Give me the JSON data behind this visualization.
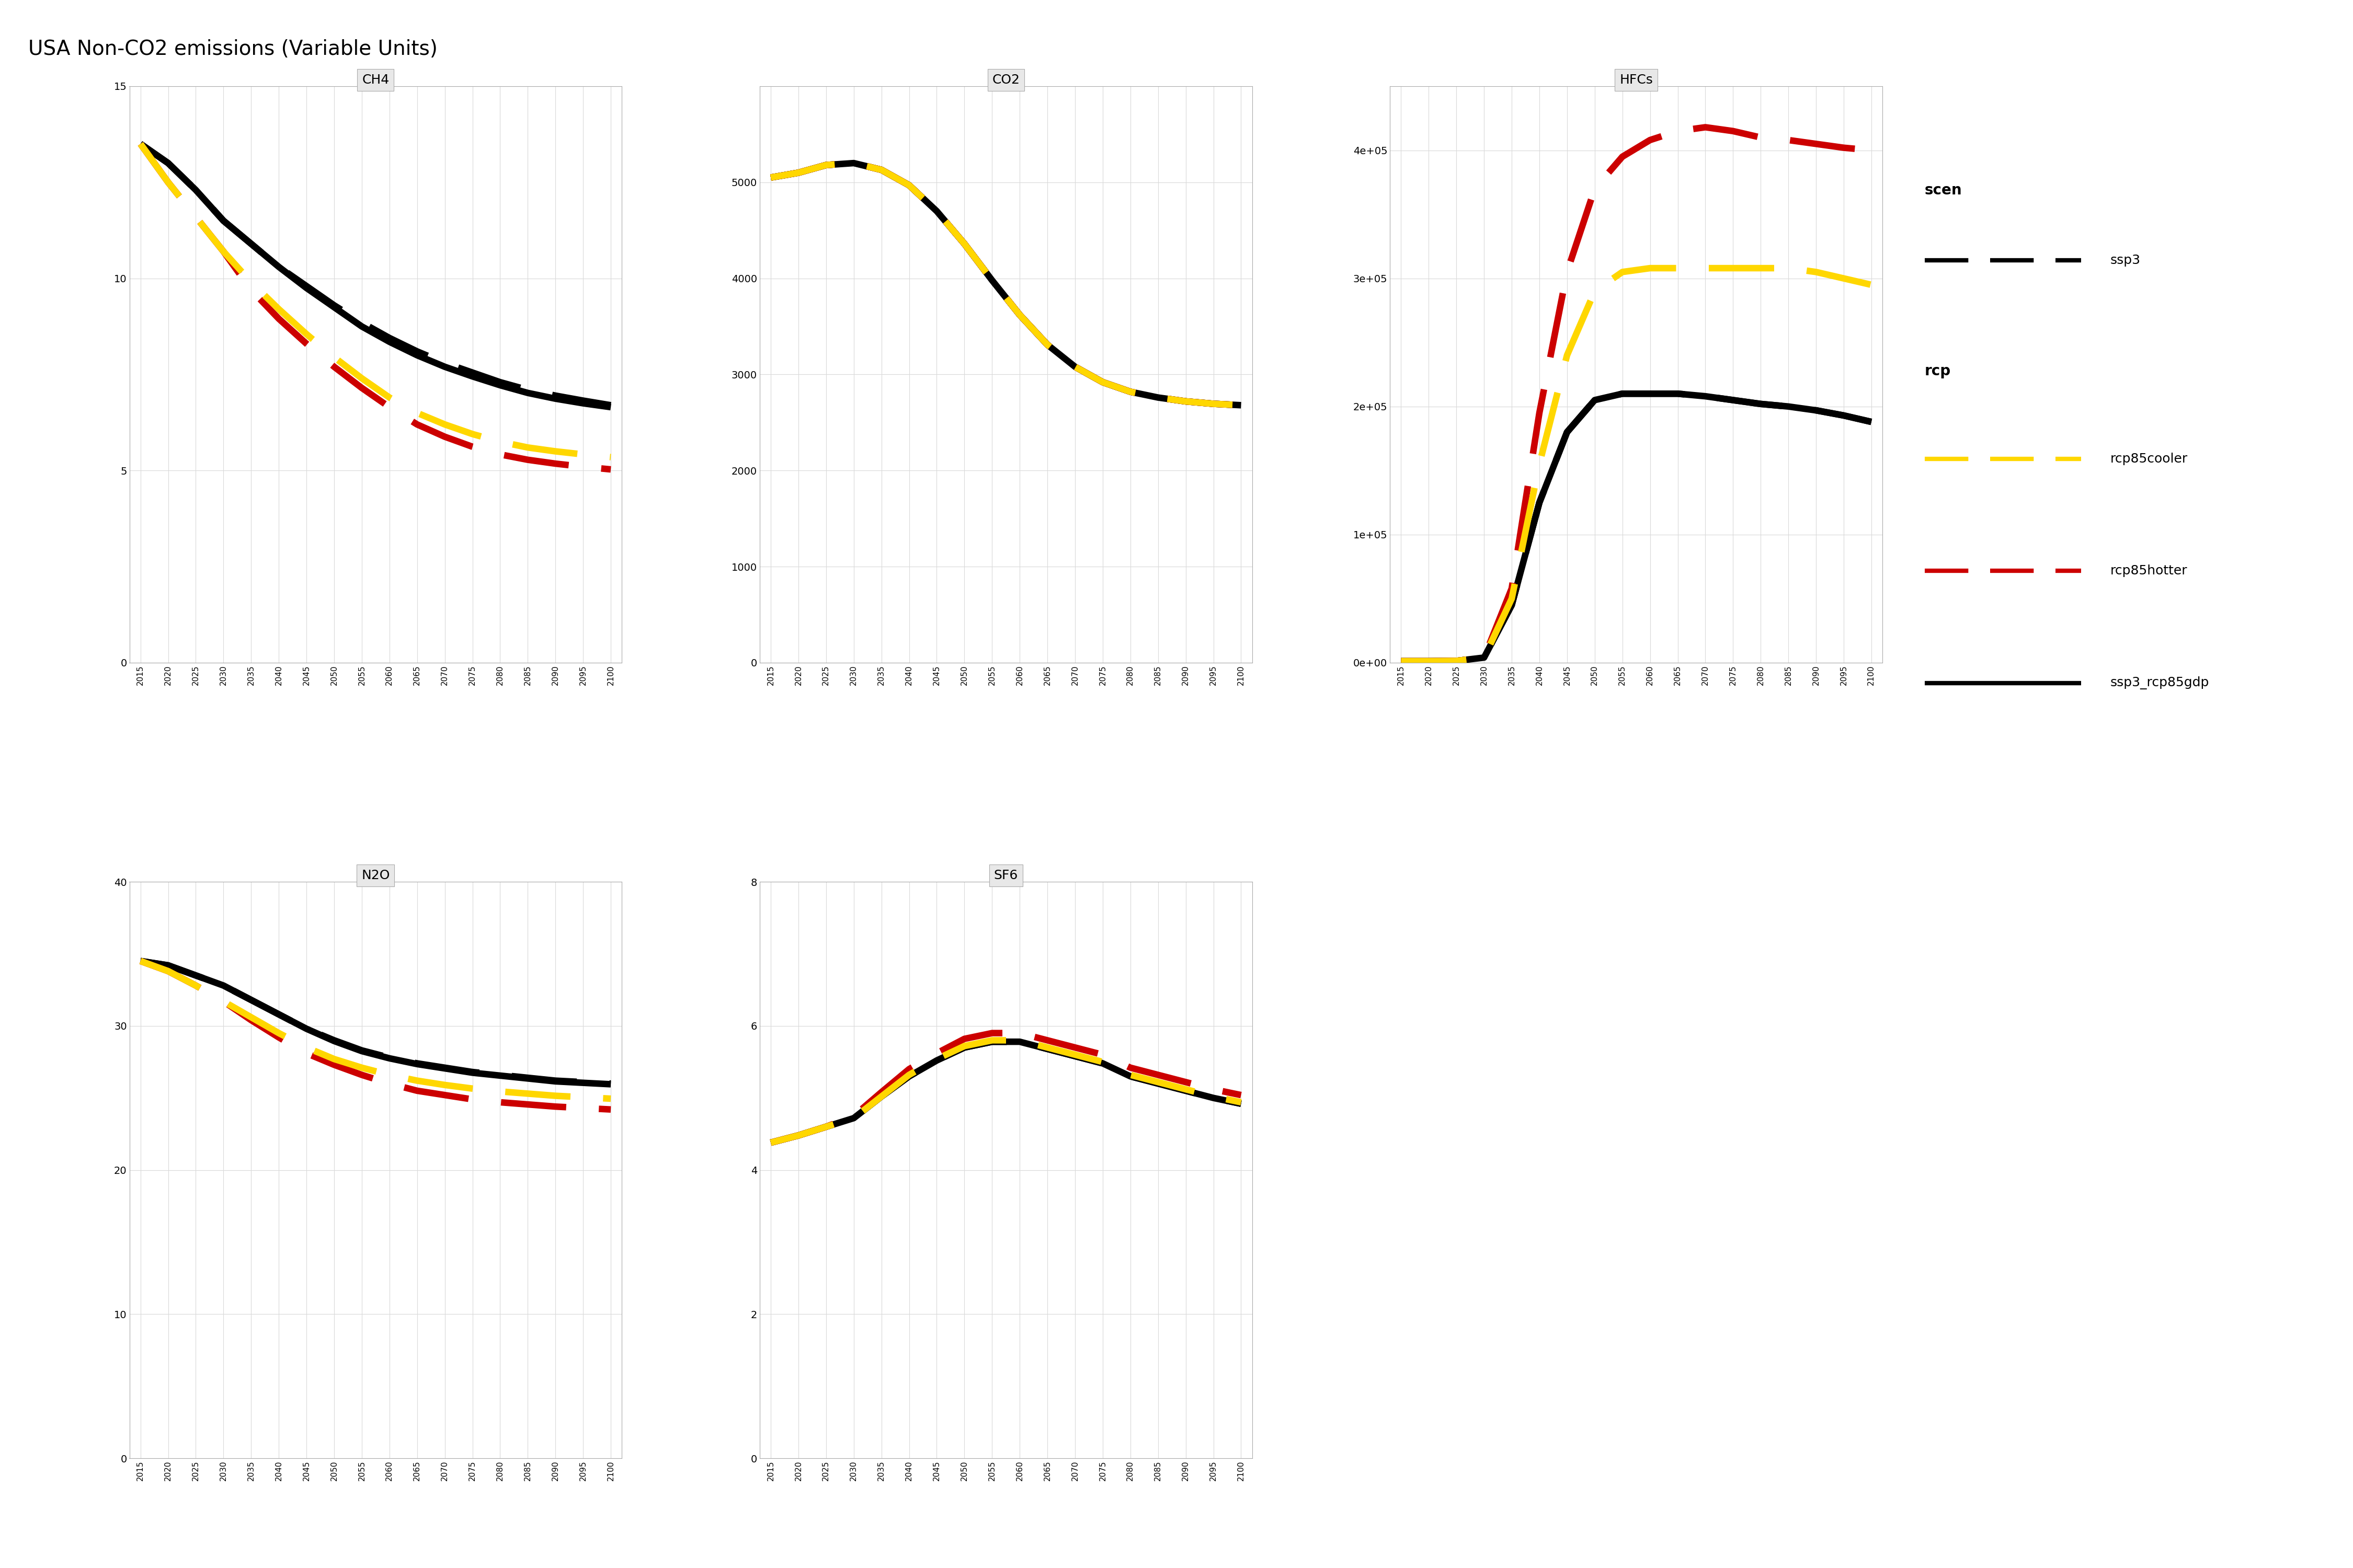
{
  "title": "USA Non-CO2 emissions (Variable Units)",
  "years": [
    2015,
    2020,
    2025,
    2030,
    2035,
    2040,
    2045,
    2050,
    2055,
    2060,
    2065,
    2070,
    2075,
    2080,
    2085,
    2090,
    2095,
    2100
  ],
  "subplots": {
    "CH4": {
      "ylim": [
        0,
        15
      ],
      "yticks": [
        0,
        5,
        10,
        15
      ],
      "data": {
        "ssp3": [
          13.5,
          13.0,
          12.3,
          11.5,
          10.9,
          10.3,
          9.8,
          9.3,
          8.85,
          8.45,
          8.1,
          7.8,
          7.55,
          7.3,
          7.1,
          6.95,
          6.82,
          6.7
        ],
        "rcp85cooler": [
          13.5,
          12.5,
          11.6,
          10.7,
          9.9,
          9.2,
          8.55,
          7.95,
          7.4,
          6.9,
          6.5,
          6.2,
          5.95,
          5.75,
          5.6,
          5.5,
          5.42,
          5.35
        ],
        "rcp85hotter": [
          13.5,
          12.5,
          11.6,
          10.7,
          9.7,
          8.95,
          8.3,
          7.7,
          7.15,
          6.65,
          6.2,
          5.88,
          5.62,
          5.42,
          5.28,
          5.18,
          5.1,
          5.03
        ],
        "ssp3_rcp85gdp": [
          13.5,
          13.0,
          12.3,
          11.5,
          10.9,
          10.3,
          9.75,
          9.25,
          8.75,
          8.35,
          8.0,
          7.7,
          7.45,
          7.22,
          7.02,
          6.87,
          6.75,
          6.65
        ]
      }
    },
    "CO2": {
      "ylim": [
        0,
        6000
      ],
      "yticks": [
        0,
        1000,
        2000,
        3000,
        4000,
        5000
      ],
      "data": {
        "ssp3": [
          5050,
          5100,
          5180,
          5200,
          5130,
          4970,
          4700,
          4360,
          3980,
          3620,
          3310,
          3080,
          2920,
          2820,
          2760,
          2720,
          2695,
          2680
        ],
        "rcp85cooler": [
          5050,
          5100,
          5180,
          5200,
          5130,
          4970,
          4700,
          4360,
          3980,
          3620,
          3310,
          3080,
          2920,
          2820,
          2760,
          2720,
          2695,
          2680
        ],
        "rcp85hotter": [
          5050,
          5100,
          5180,
          5200,
          5130,
          4970,
          4700,
          4360,
          3980,
          3620,
          3310,
          3080,
          2920,
          2820,
          2760,
          2720,
          2695,
          2680
        ],
        "ssp3_rcp85gdp": [
          5050,
          5100,
          5180,
          5200,
          5130,
          4970,
          4700,
          4360,
          3980,
          3620,
          3310,
          3080,
          2920,
          2820,
          2760,
          2720,
          2695,
          2680
        ]
      }
    },
    "HFCs": {
      "ylim": [
        0,
        450000
      ],
      "yticks": [
        0,
        100000,
        200000,
        300000,
        400000
      ],
      "data": {
        "ssp3": [
          1200,
          1200,
          1400,
          4000,
          45000,
          125000,
          180000,
          205000,
          210000,
          210000,
          210000,
          208000,
          205000,
          202000,
          200000,
          197000,
          193000,
          188000
        ],
        "rcp85cooler": [
          1200,
          1200,
          1400,
          4000,
          50000,
          155000,
          240000,
          290000,
          305000,
          308000,
          308000,
          308000,
          308000,
          308000,
          308000,
          305000,
          300000,
          295000
        ],
        "rcp85hotter": [
          1200,
          1200,
          1400,
          4000,
          58000,
          195000,
          305000,
          370000,
          395000,
          408000,
          415000,
          418000,
          415000,
          410000,
          408000,
          405000,
          402000,
          400000
        ],
        "ssp3_rcp85gdp": [
          1200,
          1200,
          1400,
          4000,
          45000,
          125000,
          180000,
          205000,
          210000,
          210000,
          210000,
          208000,
          205000,
          202000,
          200000,
          197000,
          193000,
          188000
        ]
      }
    },
    "N2O": {
      "ylim": [
        0,
        40
      ],
      "yticks": [
        0,
        10,
        20,
        30,
        40
      ],
      "data": {
        "ssp3": [
          34.5,
          34.2,
          33.5,
          32.8,
          31.8,
          30.8,
          29.8,
          29.0,
          28.3,
          27.8,
          27.4,
          27.1,
          26.8,
          26.6,
          26.4,
          26.2,
          26.1,
          26.0
        ],
        "rcp85cooler": [
          34.5,
          33.8,
          32.8,
          31.7,
          30.6,
          29.5,
          28.5,
          27.7,
          27.1,
          26.6,
          26.2,
          25.9,
          25.65,
          25.45,
          25.3,
          25.15,
          25.05,
          24.95
        ],
        "rcp85hotter": [
          34.5,
          33.8,
          32.8,
          31.7,
          30.4,
          29.2,
          28.1,
          27.3,
          26.6,
          26.0,
          25.5,
          25.2,
          24.9,
          24.7,
          24.55,
          24.4,
          24.3,
          24.2
        ],
        "ssp3_rcp85gdp": [
          34.5,
          34.2,
          33.5,
          32.8,
          31.8,
          30.8,
          29.8,
          28.95,
          28.25,
          27.75,
          27.35,
          27.05,
          26.75,
          26.55,
          26.35,
          26.15,
          26.05,
          25.95
        ]
      }
    },
    "SF6": {
      "ylim": [
        0,
        8
      ],
      "yticks": [
        0,
        2,
        4,
        6,
        8
      ],
      "data": {
        "ssp3": [
          4.38,
          4.48,
          4.6,
          4.72,
          5.02,
          5.3,
          5.52,
          5.7,
          5.78,
          5.78,
          5.68,
          5.58,
          5.48,
          5.3,
          5.2,
          5.1,
          5.0,
          4.92
        ],
        "rcp85cooler": [
          4.38,
          4.48,
          4.6,
          4.72,
          5.02,
          5.32,
          5.54,
          5.72,
          5.8,
          5.8,
          5.7,
          5.6,
          5.5,
          5.32,
          5.22,
          5.12,
          5.02,
          4.94
        ],
        "rcp85hotter": [
          4.38,
          4.48,
          4.6,
          4.75,
          5.08,
          5.4,
          5.62,
          5.82,
          5.9,
          5.9,
          5.8,
          5.7,
          5.6,
          5.42,
          5.32,
          5.22,
          5.12,
          5.04
        ],
        "ssp3_rcp85gdp": [
          4.38,
          4.48,
          4.6,
          4.72,
          5.02,
          5.3,
          5.52,
          5.7,
          5.78,
          5.78,
          5.68,
          5.58,
          5.48,
          5.3,
          5.2,
          5.1,
          5.0,
          4.92
        ]
      }
    }
  },
  "line_order": [
    "ssp3",
    "ssp3_rcp85gdp",
    "rcp85hotter",
    "rcp85cooler"
  ],
  "line_styles": {
    "ssp3": {
      "color": "#000000",
      "lw": 9,
      "ls": "dashed",
      "zorder": 4
    },
    "rcp85cooler": {
      "color": "#FFD700",
      "lw": 9,
      "ls": "dashed",
      "zorder": 7
    },
    "rcp85hotter": {
      "color": "#CC0000",
      "lw": 9,
      "ls": "dashed",
      "zorder": 6
    },
    "ssp3_rcp85gdp": {
      "color": "#000000",
      "lw": 9,
      "ls": "solid",
      "zorder": 5
    }
  },
  "dash_pattern": [
    10,
    5
  ],
  "background_color": "#ffffff",
  "panel_title_bg": "#e8e8e8",
  "grid_color": "#d9d9d9"
}
